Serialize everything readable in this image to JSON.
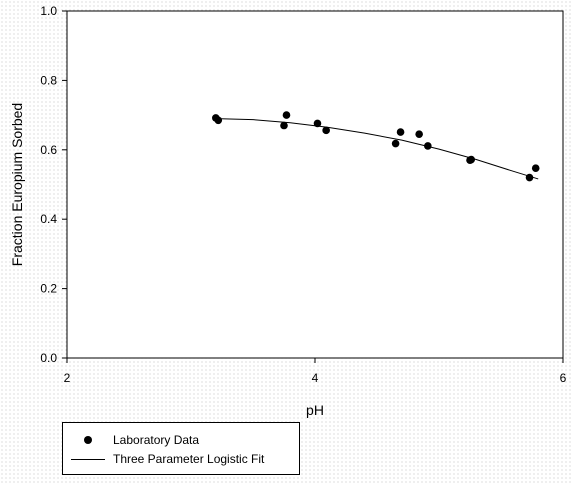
{
  "chart_data": {
    "type": "scatter",
    "xlabel": "pH",
    "ylabel": "Fraction Europium Sorbed",
    "xlim": [
      2,
      6
    ],
    "ylim": [
      0.0,
      1.0
    ],
    "x_ticks": [
      "2",
      "4",
      "6"
    ],
    "y_ticks": [
      "0.0",
      "0.2",
      "0.4",
      "0.6",
      "0.8",
      "1.0"
    ],
    "grid": false,
    "legend_position": "bottom-left, below plot",
    "series": [
      {
        "name": "Laboratory Data",
        "kind": "scatter",
        "x": [
          3.2,
          3.22,
          3.75,
          3.77,
          4.02,
          4.09,
          4.65,
          4.69,
          4.84,
          4.91,
          5.25,
          5.26,
          5.73,
          5.78
        ],
        "y": [
          0.692,
          0.685,
          0.67,
          0.7,
          0.676,
          0.656,
          0.618,
          0.651,
          0.645,
          0.611,
          0.57,
          0.572,
          0.52,
          0.547
        ]
      },
      {
        "name": "Three Parameter Logistic Fit",
        "kind": "line",
        "x": [
          3.2,
          3.5,
          3.8,
          4.1,
          4.4,
          4.7,
          5.0,
          5.3,
          5.6,
          5.8
        ],
        "y": [
          0.69,
          0.687,
          0.678,
          0.665,
          0.648,
          0.628,
          0.602,
          0.572,
          0.538,
          0.516
        ]
      }
    ]
  },
  "legend": {
    "items": [
      "Laboratory Data",
      "Three Parameter Logistic Fit"
    ]
  }
}
